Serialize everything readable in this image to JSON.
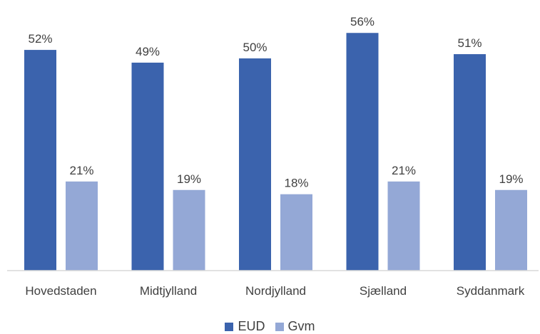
{
  "chart_data": {
    "type": "bar",
    "categories": [
      "Hovedstaden",
      "Midtjylland",
      "Nordjylland",
      "Sjælland",
      "Syddanmark"
    ],
    "series": [
      {
        "name": "EUD",
        "values": [
          52,
          49,
          50,
          56,
          51
        ],
        "labels": [
          "52%",
          "49%",
          "50%",
          "56%",
          "51%"
        ],
        "color": "#3b63ad"
      },
      {
        "name": "Gvm",
        "values": [
          21,
          19,
          18,
          21,
          19
        ],
        "labels": [
          "21%",
          "19%",
          "18%",
          "21%",
          "19%"
        ],
        "color": "#94a8d6"
      }
    ],
    "ylim": [
      0,
      60
    ],
    "grid": false,
    "legend_position": "bottom"
  }
}
